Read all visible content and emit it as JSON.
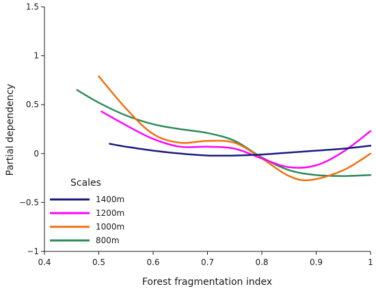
{
  "chart_data": {
    "type": "line",
    "xlabel": "Forest fragmentation index",
    "ylabel": "Partial dependency",
    "xlim": [
      0.4,
      1.0
    ],
    "ylim": [
      -1.0,
      1.5
    ],
    "x_ticks": [
      0.4,
      0.5,
      0.6,
      0.7,
      0.8,
      0.9,
      1.0
    ],
    "x_tick_labels": [
      "0.4",
      "0.5",
      "0.6",
      "0.7",
      "0.8",
      "0.9",
      "1"
    ],
    "y_ticks": [
      -1.0,
      -0.5,
      0.0,
      0.5,
      1.0,
      1.5
    ],
    "y_tick_labels": [
      "−1",
      "−0.5",
      "0",
      "0.5",
      "1",
      "1.5"
    ],
    "grid": false,
    "legend": {
      "title": "Scales",
      "position": "bottom-left"
    },
    "series": [
      {
        "name": "1400m",
        "color": "#1a1a80",
        "x": [
          0.52,
          0.55,
          0.6,
          0.65,
          0.7,
          0.75,
          0.8,
          0.85,
          0.9,
          0.95,
          1.0
        ],
        "y": [
          0.1,
          0.07,
          0.03,
          0.0,
          -0.02,
          -0.02,
          -0.01,
          0.01,
          0.03,
          0.05,
          0.08
        ]
      },
      {
        "name": "1200m",
        "color": "#ff00ff",
        "x": [
          0.505,
          0.55,
          0.6,
          0.65,
          0.7,
          0.75,
          0.8,
          0.85,
          0.9,
          0.95,
          1.0
        ],
        "y": [
          0.43,
          0.29,
          0.15,
          0.07,
          0.07,
          0.05,
          -0.05,
          -0.14,
          -0.12,
          0.02,
          0.23
        ]
      },
      {
        "name": "1000m",
        "color": "#f07010",
        "x": [
          0.5,
          0.55,
          0.6,
          0.65,
          0.7,
          0.75,
          0.8,
          0.85,
          0.89,
          0.95,
          1.0
        ],
        "y": [
          0.79,
          0.46,
          0.2,
          0.11,
          0.13,
          0.11,
          -0.05,
          -0.23,
          -0.27,
          -0.17,
          0.0
        ]
      },
      {
        "name": "800m",
        "color": "#2e8b57",
        "x": [
          0.46,
          0.5,
          0.55,
          0.6,
          0.65,
          0.7,
          0.75,
          0.8,
          0.85,
          0.9,
          0.95,
          1.0
        ],
        "y": [
          0.65,
          0.52,
          0.39,
          0.3,
          0.25,
          0.21,
          0.13,
          -0.04,
          -0.17,
          -0.22,
          -0.23,
          -0.22
        ]
      }
    ]
  }
}
